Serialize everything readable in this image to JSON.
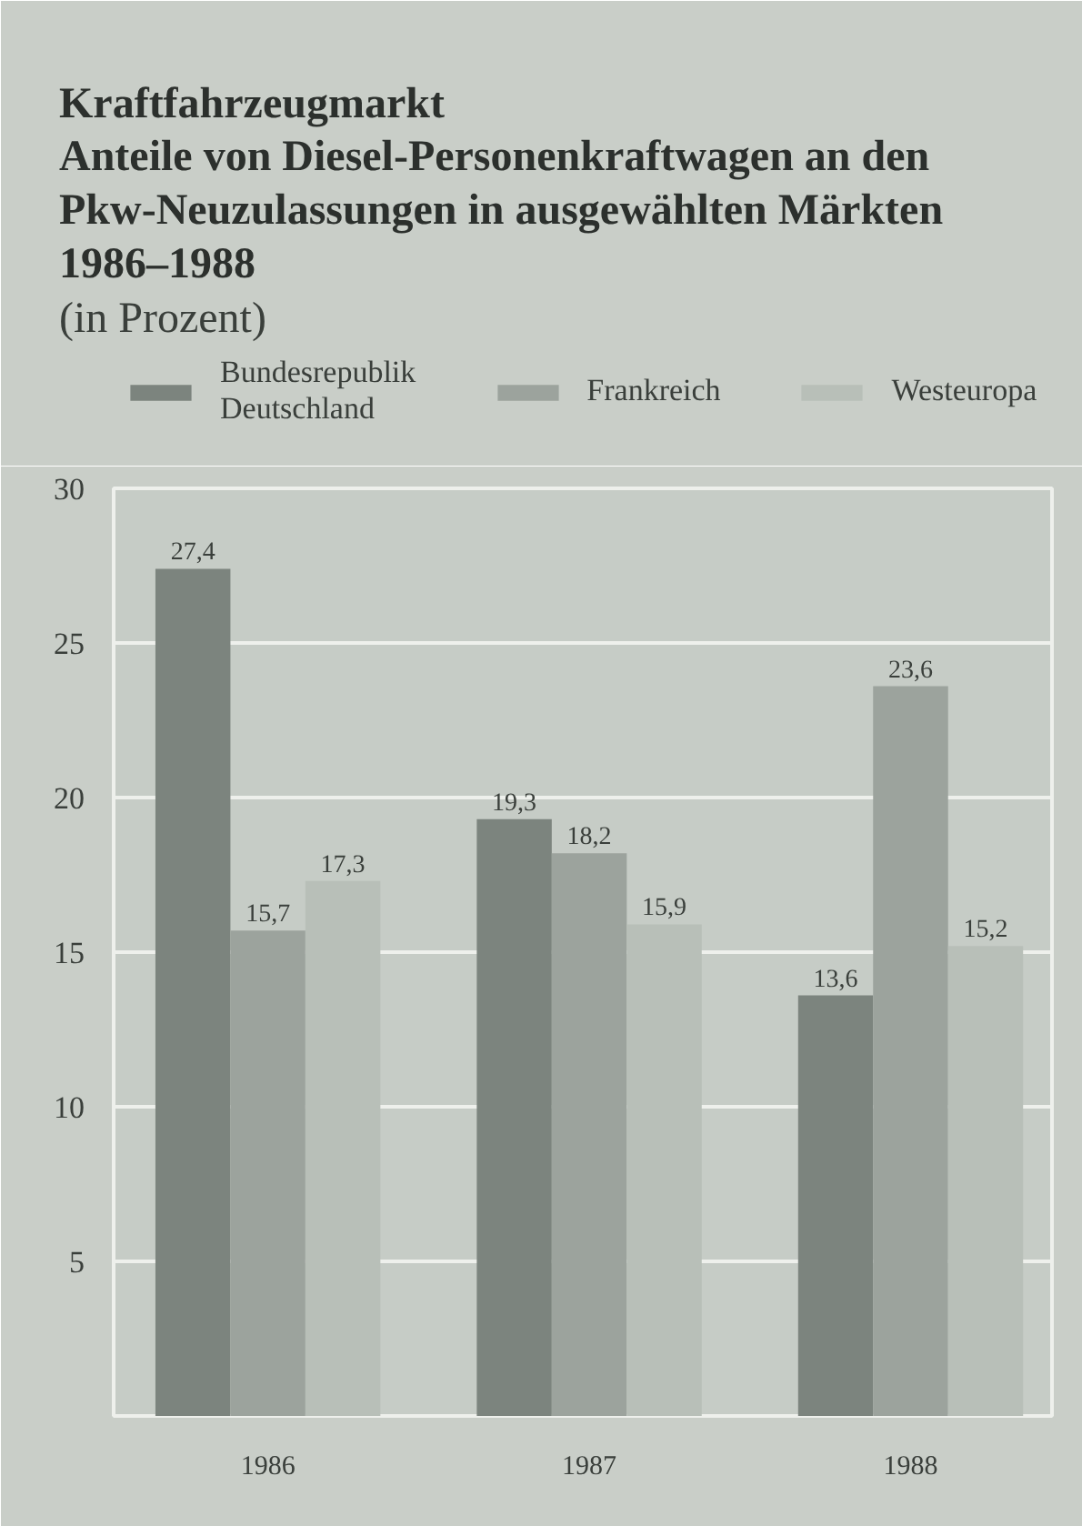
{
  "chart_data": {
    "type": "bar",
    "title": "Kraftfahrzeugmarkt\nAnteile von Diesel-Personenkraftwagen an den\nPkw-Neuzulassungen in ausgewählten Märkten\n1986–1988",
    "subtitle": "(in Prozent)",
    "categories": [
      "1986",
      "1987",
      "1988"
    ],
    "series": [
      {
        "name": "Bundesrepublik Deutschland",
        "color": "#7c847e",
        "values": [
          27.4,
          19.3,
          13.6
        ],
        "value_labels": [
          "27,4",
          "19,3",
          "13,6"
        ]
      },
      {
        "name": "Frankreich",
        "color": "#9ca39d",
        "values": [
          15.7,
          18.2,
          23.6
        ],
        "value_labels": [
          "15,7",
          "18,2",
          "23,6"
        ]
      },
      {
        "name": "Westeuropa",
        "color": "#b8bfb8",
        "values": [
          17.3,
          15.9,
          15.2
        ],
        "value_labels": [
          "17,3",
          "15,9",
          "15,2"
        ]
      }
    ],
    "ylim": [
      0,
      30
    ],
    "yticks": [
      5,
      10,
      15,
      20,
      25,
      30
    ],
    "grid": "y",
    "legend": "top"
  }
}
